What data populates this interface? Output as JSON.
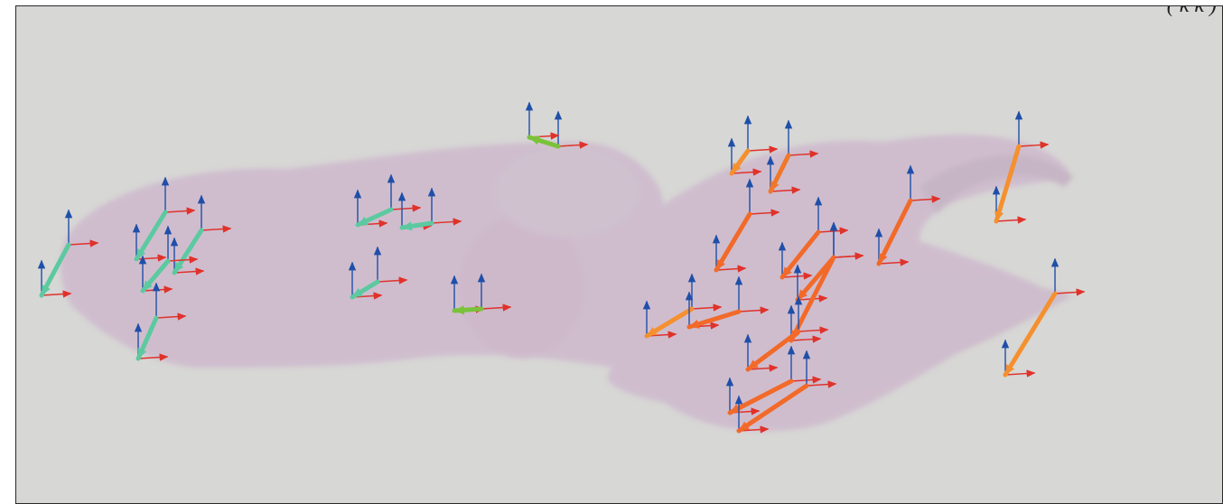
{
  "image": {
    "description_note": "",
    "formula_fragment": "( k k )",
    "colors": {
      "background": "#d7d7d5",
      "tissue": "#c9a9c9",
      "axis_x": "#e0322a",
      "axis_y": "#1f4fa8",
      "cluster_teal": "#5cc9a0",
      "cluster_green": "#7ac23a",
      "cluster_orange": "#f0782a"
    }
  }
}
